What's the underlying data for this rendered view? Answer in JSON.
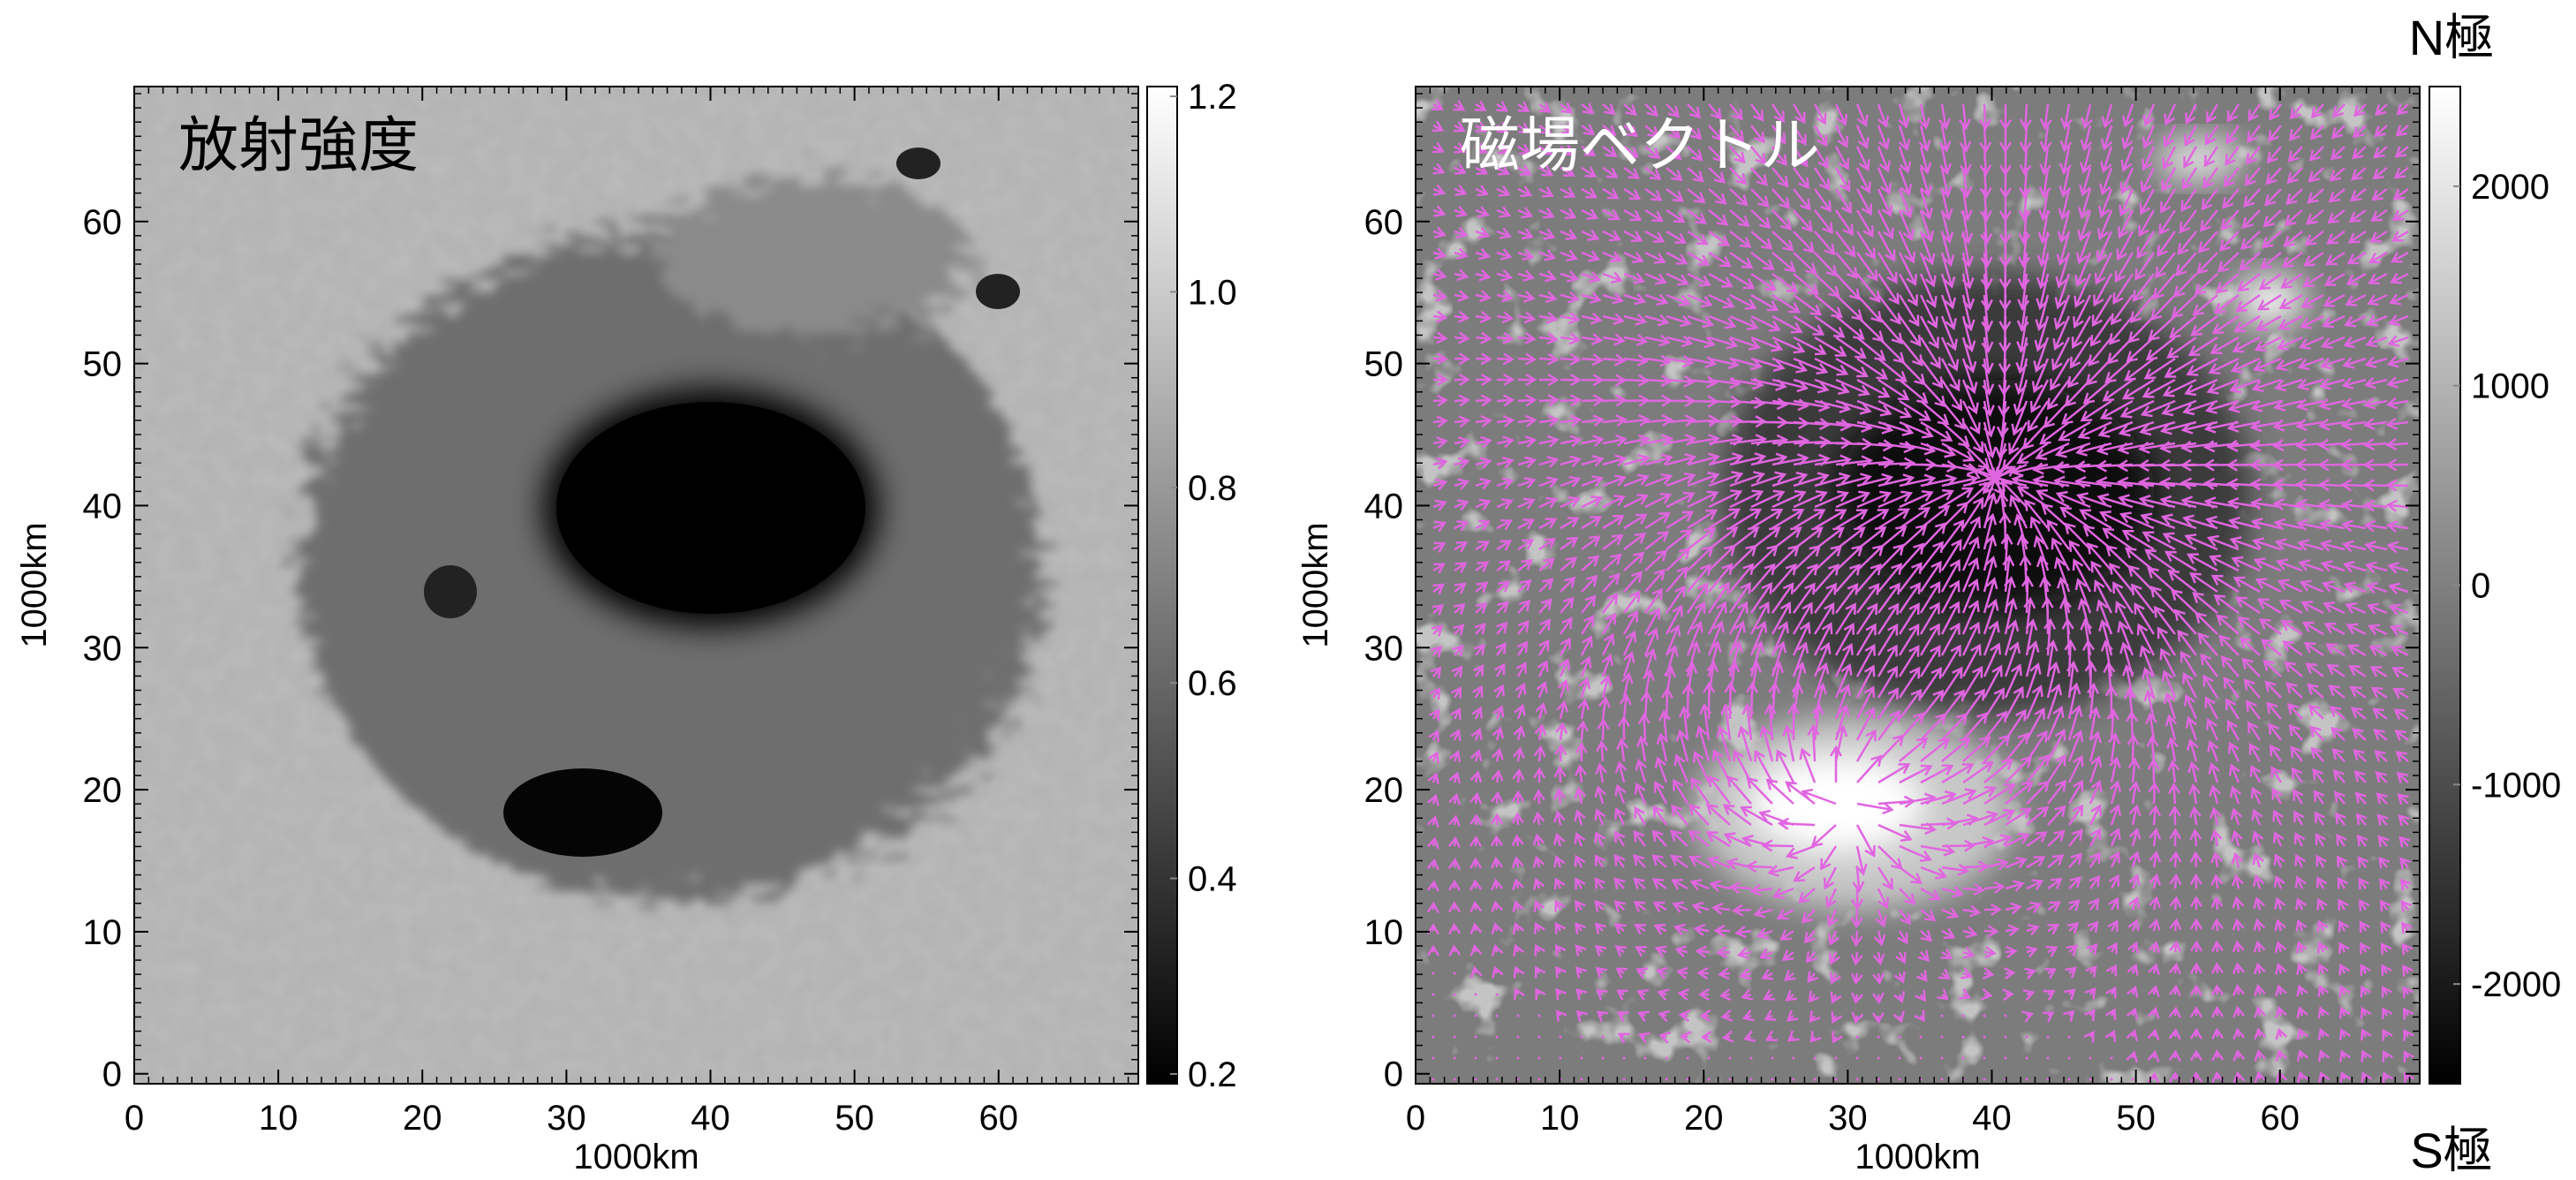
{
  "chart_data": [
    {
      "type": "image",
      "title": "放射強度",
      "title_color": "#000000",
      "xlabel": "1000km",
      "ylabel": "1000km",
      "xlim": [
        0,
        69.7
      ],
      "ylim": [
        -0.7,
        69.5
      ],
      "xticks": [
        0,
        10,
        20,
        30,
        40,
        50,
        60
      ],
      "yticks": [
        0,
        10,
        20,
        30,
        40,
        50,
        60
      ],
      "colormap": "gray",
      "colorbar_lim": [
        0.19,
        1.21
      ],
      "colorbar_ticks": [
        0.2,
        0.4,
        0.6,
        0.8,
        {
          "value": 1,
          "label": "1.0"
        },
        1.2
      ]
    },
    {
      "type": "image",
      "title": "磁場ベクトル",
      "title_color": "#ffffff",
      "xlabel": "1000km",
      "ylabel": "1000km",
      "xlim": [
        0,
        69.7
      ],
      "ylim": [
        -0.7,
        69.5
      ],
      "xticks": [
        0,
        10,
        20,
        30,
        40,
        50,
        60
      ],
      "yticks": [
        0,
        10,
        20,
        30,
        40,
        50,
        60
      ],
      "colormap": "gray",
      "colorbar_lim": [
        -2500,
        2500
      ],
      "colorbar_ticks": [
        -2000,
        -1000,
        0,
        1000,
        2000
      ],
      "colorbar_top_label": "N極",
      "colorbar_bottom_label": "S極",
      "vector_color": "#e066e0"
    }
  ]
}
